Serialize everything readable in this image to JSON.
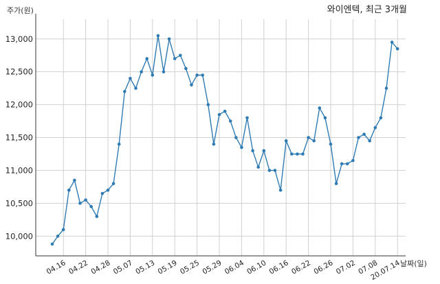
{
  "chart_data": {
    "type": "line",
    "title": "와이엔텍, 최근 3개월",
    "ylabel": "주가(원)",
    "xlabel": "날짜(일)",
    "ylim": [
      9700,
      13300
    ],
    "yticks": [
      10000,
      10500,
      11000,
      11500,
      12000,
      12500,
      13000
    ],
    "ytick_labels": [
      "10,000",
      "10,500",
      "11,000",
      "11,500",
      "12,000",
      "12,500",
      "13,000"
    ],
    "grid": true,
    "line_color": "#2e7bb4",
    "xtick_indices": [
      2,
      6,
      10,
      14,
      18,
      22,
      26,
      30,
      34,
      38,
      42,
      46,
      50,
      54,
      58,
      62
    ],
    "xtick_labels": [
      "04.16",
      "04.22",
      "04.28",
      "05.07",
      "05.13",
      "05.19",
      "05.25",
      "05.29",
      "06.04",
      "06.10",
      "06.16",
      "06.22",
      "06.26",
      "07.02",
      "07.08",
      "20.07.14"
    ],
    "values": [
      9880,
      10000,
      10100,
      10700,
      10850,
      10500,
      10550,
      10450,
      10300,
      10650,
      10700,
      10800,
      11400,
      12200,
      12400,
      12250,
      12500,
      12700,
      12450,
      13050,
      12500,
      13000,
      12700,
      12750,
      12550,
      12300,
      12450,
      12450,
      12000,
      11400,
      11850,
      11900,
      11750,
      11500,
      11350,
      11800,
      11300,
      11050,
      11300,
      11000,
      11000,
      10700,
      11450,
      11250,
      11250,
      11250,
      11500,
      11450,
      11950,
      11800,
      11400,
      10800,
      11100,
      11100,
      11150,
      11500,
      11550,
      11450,
      11650,
      11800,
      12250,
      12950,
      12850
    ]
  }
}
